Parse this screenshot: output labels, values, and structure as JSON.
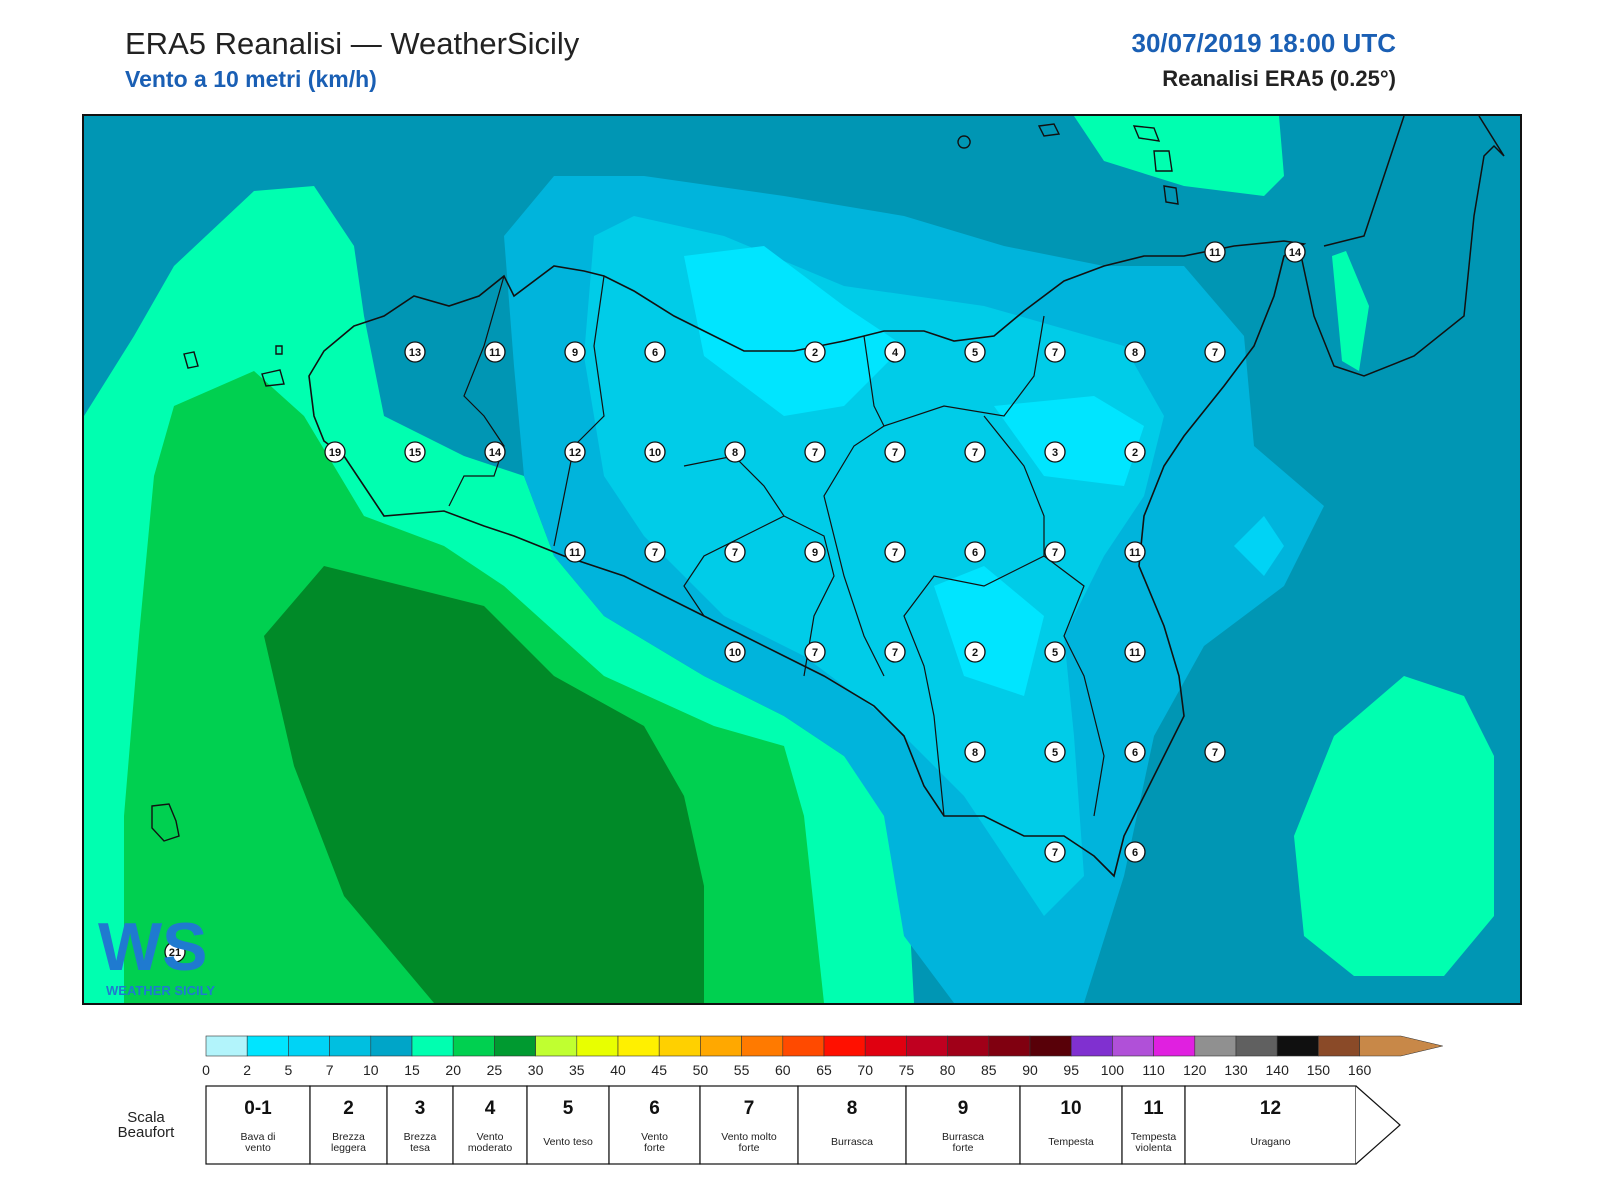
{
  "header": {
    "title": "ERA5 Reanalisi — WeatherSicily",
    "subtitle": "Vento a 10 metri (km/h)",
    "datetime": "30/07/2019 18:00 UTC",
    "source": "Reanalisi ERA5 (0.25°)"
  },
  "map": {
    "wind_labels": [
      {
        "value": "13",
        "lon_index": 4,
        "lat_index": 1
      },
      {
        "value": "11",
        "lon_index": 5,
        "lat_index": 1
      },
      {
        "value": "9",
        "lon_index": 6,
        "lat_index": 1
      },
      {
        "value": "6",
        "lon_index": 7,
        "lat_index": 1
      },
      {
        "value": "2",
        "lon_index": 9,
        "lat_index": 1
      },
      {
        "value": "4",
        "lon_index": 10,
        "lat_index": 1
      },
      {
        "value": "5",
        "lon_index": 11,
        "lat_index": 1
      },
      {
        "value": "7",
        "lon_index": 12,
        "lat_index": 1
      },
      {
        "value": "8",
        "lon_index": 13,
        "lat_index": 1
      },
      {
        "value": "7",
        "lon_index": 14,
        "lat_index": 1
      },
      {
        "value": "11",
        "lon_index": 14,
        "lat_index": 0
      },
      {
        "value": "14",
        "lon_index": 15,
        "lat_index": 0
      },
      {
        "value": "19",
        "lon_index": 3,
        "lat_index": 2
      },
      {
        "value": "15",
        "lon_index": 4,
        "lat_index": 2
      },
      {
        "value": "14",
        "lon_index": 5,
        "lat_index": 2
      },
      {
        "value": "12",
        "lon_index": 6,
        "lat_index": 2
      },
      {
        "value": "10",
        "lon_index": 7,
        "lat_index": 2
      },
      {
        "value": "8",
        "lon_index": 8,
        "lat_index": 2
      },
      {
        "value": "7",
        "lon_index": 9,
        "lat_index": 2
      },
      {
        "value": "7",
        "lon_index": 10,
        "lat_index": 2
      },
      {
        "value": "7",
        "lon_index": 11,
        "lat_index": 2
      },
      {
        "value": "3",
        "lon_index": 12,
        "lat_index": 2
      },
      {
        "value": "2",
        "lon_index": 13,
        "lat_index": 2
      },
      {
        "value": "11",
        "lon_index": 6,
        "lat_index": 3
      },
      {
        "value": "7",
        "lon_index": 7,
        "lat_index": 3
      },
      {
        "value": "7",
        "lon_index": 8,
        "lat_index": 3
      },
      {
        "value": "9",
        "lon_index": 9,
        "lat_index": 3
      },
      {
        "value": "7",
        "lon_index": 10,
        "lat_index": 3
      },
      {
        "value": "6",
        "lon_index": 11,
        "lat_index": 3
      },
      {
        "value": "7",
        "lon_index": 12,
        "lat_index": 3
      },
      {
        "value": "11",
        "lon_index": 13,
        "lat_index": 3
      },
      {
        "value": "10",
        "lon_index": 8,
        "lat_index": 4
      },
      {
        "value": "7",
        "lon_index": 9,
        "lat_index": 4
      },
      {
        "value": "7",
        "lon_index": 10,
        "lat_index": 4
      },
      {
        "value": "2",
        "lon_index": 11,
        "lat_index": 4
      },
      {
        "value": "5",
        "lon_index": 12,
        "lat_index": 4
      },
      {
        "value": "11",
        "lon_index": 13,
        "lat_index": 4
      },
      {
        "value": "8",
        "lon_index": 11,
        "lat_index": 5
      },
      {
        "value": "5",
        "lon_index": 12,
        "lat_index": 5
      },
      {
        "value": "6",
        "lon_index": 13,
        "lat_index": 5
      },
      {
        "value": "7",
        "lon_index": 14,
        "lat_index": 5
      },
      {
        "value": "7",
        "lon_index": 12,
        "lat_index": 6
      },
      {
        "value": "6",
        "lon_index": 13,
        "lat_index": 6
      },
      {
        "value": "21",
        "lon_index": 1,
        "lat_index": 7
      }
    ]
  },
  "colorbar": {
    "ticks": [
      "0",
      "2",
      "5",
      "7",
      "10",
      "15",
      "20",
      "25",
      "30",
      "35",
      "40",
      "45",
      "50",
      "55",
      "60",
      "65",
      "70",
      "75",
      "80",
      "85",
      "90",
      "95",
      "100",
      "110",
      "120",
      "130",
      "140",
      "150",
      "160"
    ],
    "colors": [
      "#b2f4fb",
      "#00e5ff",
      "#00d3f5",
      "#00bfe0",
      "#00a5c8",
      "#00ffb0",
      "#00d050",
      "#009a30",
      "#c0ff30",
      "#e8ff00",
      "#fff000",
      "#ffd000",
      "#ffa800",
      "#ff7a00",
      "#ff4a00",
      "#ff1000",
      "#e00010",
      "#c00020",
      "#a00018",
      "#800010",
      "#580008",
      "#8030d0",
      "#b050d8",
      "#e020e0",
      "#909090",
      "#606060",
      "#101010",
      "#8a4a28",
      "#c88848"
    ]
  },
  "beaufort": {
    "title_line1": "Scala",
    "title_line2": "Beaufort",
    "classes": [
      {
        "num": "0-1",
        "desc1": "Bava di",
        "desc2": "vento"
      },
      {
        "num": "2",
        "desc1": "Brezza",
        "desc2": "leggera"
      },
      {
        "num": "3",
        "desc1": "Brezza",
        "desc2": "tesa"
      },
      {
        "num": "4",
        "desc1": "Vento",
        "desc2": "moderato"
      },
      {
        "num": "5",
        "desc1": "Vento teso",
        "desc2": ""
      },
      {
        "num": "6",
        "desc1": "Vento",
        "desc2": "forte"
      },
      {
        "num": "7",
        "desc1": "Vento molto",
        "desc2": "forte"
      },
      {
        "num": "8",
        "desc1": "Burrasca",
        "desc2": ""
      },
      {
        "num": "9",
        "desc1": "Burrasca",
        "desc2": "forte"
      },
      {
        "num": "10",
        "desc1": "Tempesta",
        "desc2": ""
      },
      {
        "num": "11",
        "desc1": "Tempesta",
        "desc2": "violenta"
      },
      {
        "num": "12",
        "desc1": "Uragano",
        "desc2": ""
      }
    ]
  },
  "logo": {
    "letters": "WS",
    "caption": "WEATHER SICILY"
  }
}
